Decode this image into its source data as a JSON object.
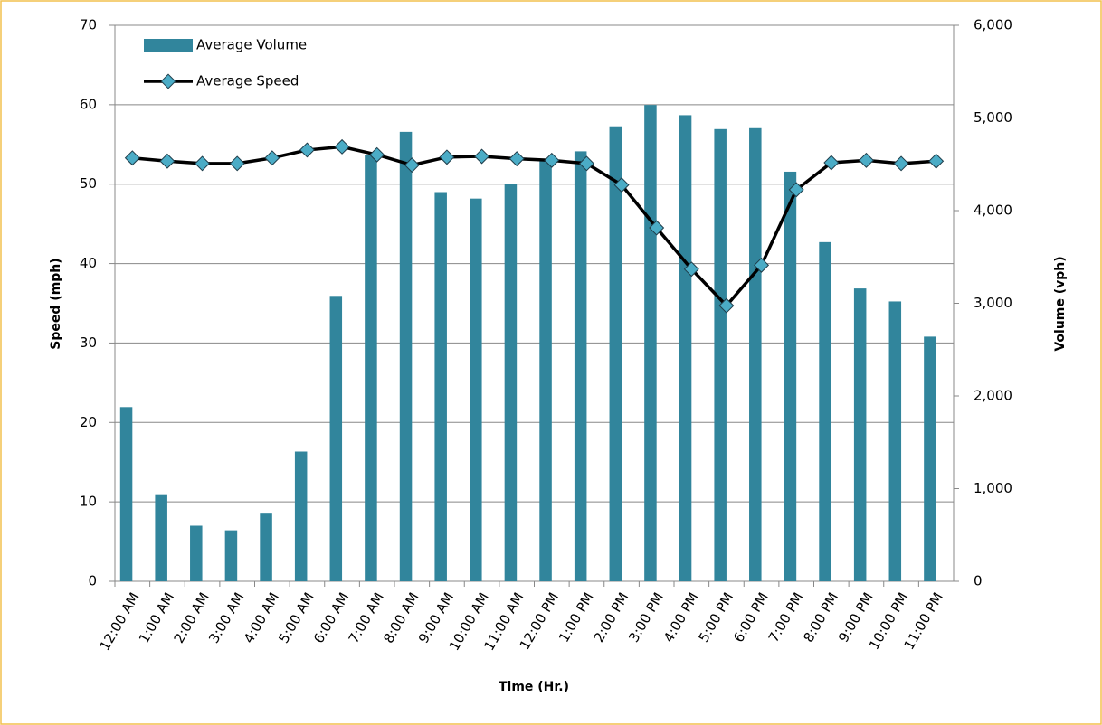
{
  "chart_data": {
    "type": "combo",
    "categories": [
      "12:00 AM",
      "1:00 AM",
      "2:00 AM",
      "3:00 AM",
      "4:00 AM",
      "5:00 AM",
      "6:00 AM",
      "7:00 AM",
      "8:00 AM",
      "9:00 AM",
      "10:00 AM",
      "11:00 AM",
      "12:00 PM",
      "1:00 PM",
      "2:00 PM",
      "3:00 PM",
      "4:00 PM",
      "5:00 PM",
      "6:00 PM",
      "7:00 PM",
      "8:00 PM",
      "9:00 PM",
      "10:00 PM",
      "11:00 PM"
    ],
    "series": [
      {
        "name": "Average Volume",
        "type": "bar",
        "axis": "y2",
        "color": "#31859c",
        "values": [
          1880,
          930,
          600,
          550,
          730,
          1400,
          3080,
          4600,
          4850,
          4200,
          4130,
          4290,
          4560,
          4640,
          4910,
          5140,
          5030,
          4880,
          4890,
          4420,
          3660,
          3160,
          3020,
          2640
        ]
      },
      {
        "name": "Average Speed",
        "type": "line",
        "color": "#000000",
        "marker_color": "#4bacc6",
        "values": [
          53.3,
          52.9,
          52.6,
          52.6,
          53.3,
          54.3,
          54.7,
          53.7,
          52.4,
          53.4,
          53.5,
          53.2,
          53.0,
          52.6,
          49.9,
          44.5,
          39.3,
          34.7,
          39.8,
          49.3,
          52.7,
          53.0,
          52.6,
          52.9
        ]
      }
    ],
    "x_label": "Time (Hr.)",
    "y_label": "Speed (mph)",
    "y2_label": "Volume (vph)",
    "ylim": [
      0,
      70
    ],
    "yticks": [
      0,
      10,
      20,
      30,
      40,
      50,
      60,
      70
    ],
    "y2lim": [
      0,
      6000
    ],
    "y2ticks": [
      0,
      {
        "value": 1000,
        "label": "1,000"
      },
      {
        "value": 2000,
        "label": "2,000"
      },
      {
        "value": 3000,
        "label": "3,000"
      },
      {
        "value": 4000,
        "label": "4,000"
      },
      {
        "value": 5000,
        "label": "5,000"
      },
      {
        "value": 6000,
        "label": "6,000"
      }
    ],
    "grid": true,
    "legend": "upper left"
  }
}
